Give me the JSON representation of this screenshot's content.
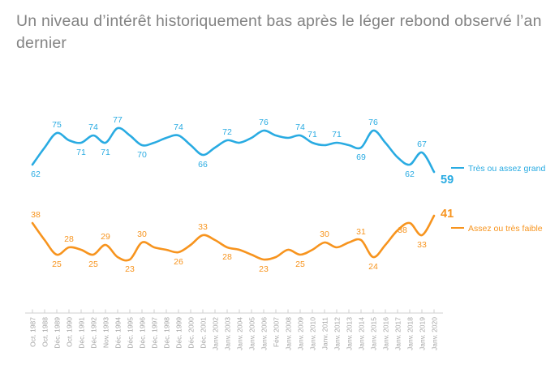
{
  "title_lines": [
    "Un niveau d’intérêt historiquement bas après le léger rebond observé l’an",
    "dernier"
  ],
  "legend": {
    "blue": "Très ou assez grand",
    "orange": "Assez ou très faible"
  },
  "colors": {
    "blue": "#29ABE2",
    "orange": "#F7941E",
    "title_gray": "#838383",
    "axis_label_gray": "#A6A6A6",
    "axis_line_gray": "#CFCFCF"
  },
  "chart_data": {
    "type": "line",
    "title": "Un niveau d’intérêt historiquement bas après le léger rebond observé l’an dernier",
    "xlabel": "",
    "ylabel": "",
    "ylim": [
      0,
      100
    ],
    "grid": false,
    "legend_position": "right",
    "categories": [
      "Oct. 1987",
      "Oct. 1988",
      "Déc. 1989",
      "Oct. 1990",
      "Déc. 1991",
      "Déc. 1992",
      "Nov. 1993",
      "Déc. 1994",
      "Déc. 1995",
      "Déc. 1996",
      "Déc. 1997",
      "Déc. 1998",
      "Déc. 1999",
      "Déc. 2000",
      "Déc. 2001",
      "Janv. 2002",
      "Janv. 2003",
      "Janv. 2004",
      "Janv. 2005",
      "Janv. 2006",
      "Fév. 2007",
      "Janv. 2008",
      "Janv. 2009",
      "Janv. 2010",
      "Janv. 2011",
      "Janv. 2012",
      "Janv. 2013",
      "Janv. 2014",
      "Janv. 2015",
      "Janv. 2016",
      "Janv. 2017",
      "Janv. 2018",
      "Janv. 2019",
      "Janv. 2020"
    ],
    "series": [
      {
        "name": "Très ou assez grand",
        "color": "#29ABE2",
        "values": [
          62,
          69,
          75,
          72,
          71,
          74,
          71,
          77,
          74,
          70,
          71,
          73,
          74,
          70,
          66,
          69,
          72,
          71,
          73,
          76,
          74,
          73,
          74,
          71,
          70,
          71,
          70,
          69,
          76,
          71,
          65,
          62,
          67,
          59
        ],
        "point_labels": [
          {
            "i": 0,
            "v": 62,
            "pos": "below"
          },
          {
            "i": 2,
            "v": 75,
            "pos": "above"
          },
          {
            "i": 4,
            "v": 71,
            "pos": "below"
          },
          {
            "i": 5,
            "v": 74,
            "pos": "above"
          },
          {
            "i": 6,
            "v": 71,
            "pos": "below"
          },
          {
            "i": 7,
            "v": 77,
            "pos": "above"
          },
          {
            "i": 9,
            "v": 70,
            "pos": "below"
          },
          {
            "i": 12,
            "v": 74,
            "pos": "above"
          },
          {
            "i": 14,
            "v": 66,
            "pos": "below"
          },
          {
            "i": 16,
            "v": 72,
            "pos": "above"
          },
          {
            "i": 19,
            "v": 76,
            "pos": "above"
          },
          {
            "i": 22,
            "v": 74,
            "pos": "above"
          },
          {
            "i": 23,
            "v": 71,
            "pos": "above"
          },
          {
            "i": 25,
            "v": 71,
            "pos": "above"
          },
          {
            "i": 27,
            "v": 69,
            "pos": "below"
          },
          {
            "i": 28,
            "v": 76,
            "pos": "above"
          },
          {
            "i": 31,
            "v": 62,
            "pos": "below"
          },
          {
            "i": 32,
            "v": 67,
            "pos": "above"
          },
          {
            "i": 33,
            "v": 59,
            "pos": "end-below"
          }
        ]
      },
      {
        "name": "Assez ou très faible",
        "color": "#F7941E",
        "values": [
          38,
          31,
          25,
          28,
          27,
          25,
          29,
          24,
          23,
          30,
          28,
          27,
          26,
          29,
          33,
          31,
          28,
          27,
          25,
          23,
          24,
          27,
          25,
          27,
          30,
          28,
          30,
          31,
          24,
          29,
          35,
          38,
          33,
          41
        ],
        "point_labels": [
          {
            "i": 0,
            "v": 38,
            "pos": "above"
          },
          {
            "i": 2,
            "v": 25,
            "pos": "below"
          },
          {
            "i": 3,
            "v": 28,
            "pos": "above"
          },
          {
            "i": 5,
            "v": 25,
            "pos": "below"
          },
          {
            "i": 6,
            "v": 29,
            "pos": "above"
          },
          {
            "i": 8,
            "v": 23,
            "pos": "below"
          },
          {
            "i": 9,
            "v": 30,
            "pos": "above"
          },
          {
            "i": 12,
            "v": 26,
            "pos": "below"
          },
          {
            "i": 14,
            "v": 33,
            "pos": "above"
          },
          {
            "i": 16,
            "v": 28,
            "pos": "below"
          },
          {
            "i": 19,
            "v": 23,
            "pos": "below"
          },
          {
            "i": 22,
            "v": 25,
            "pos": "below"
          },
          {
            "i": 24,
            "v": 30,
            "pos": "above"
          },
          {
            "i": 27,
            "v": 31,
            "pos": "above"
          },
          {
            "i": 28,
            "v": 24,
            "pos": "below"
          },
          {
            "i": 31,
            "v": 38,
            "pos": "below-left"
          },
          {
            "i": 32,
            "v": 33,
            "pos": "below"
          },
          {
            "i": 33,
            "v": 41,
            "pos": "end"
          }
        ]
      }
    ]
  }
}
